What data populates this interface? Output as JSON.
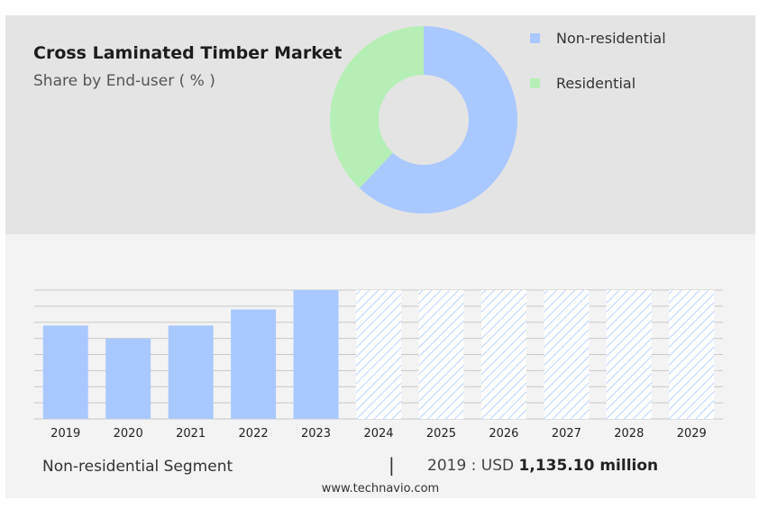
{
  "header": {
    "title": "Cross Laminated Timber Market",
    "subtitle": "Share by End-user ( % )"
  },
  "footer": {
    "segment_label": "Non-residential Segment",
    "divider": "|",
    "stat_prefix": "2019 : USD",
    "stat_value": "1,135.10 million",
    "source": "www.technavio.com"
  },
  "colors": {
    "non_residential": "#a9c8ff",
    "residential": "#b6efb6",
    "forecast_hatch": "#a9c8ff",
    "grid": "#c8c8c8"
  },
  "chart_data": [
    {
      "type": "pie",
      "style": "donut",
      "categories": [
        "Non-residential",
        "Residential"
      ],
      "values": [
        62,
        38
      ],
      "legend_position": "right"
    },
    {
      "type": "bar",
      "categories": [
        "2019",
        "2020",
        "2021",
        "2022",
        "2023",
        "2024",
        "2025",
        "2026",
        "2027",
        "2028",
        "2029"
      ],
      "values": [
        58,
        50,
        58,
        68,
        80,
        null,
        null,
        null,
        null,
        null,
        null
      ],
      "forecast_categories": [
        "2024",
        "2025",
        "2026",
        "2027",
        "2028",
        "2029"
      ],
      "forecast_display_value": 80,
      "ylim": [
        0,
        80
      ],
      "grid": true,
      "y_ticks_shown": false
    }
  ]
}
